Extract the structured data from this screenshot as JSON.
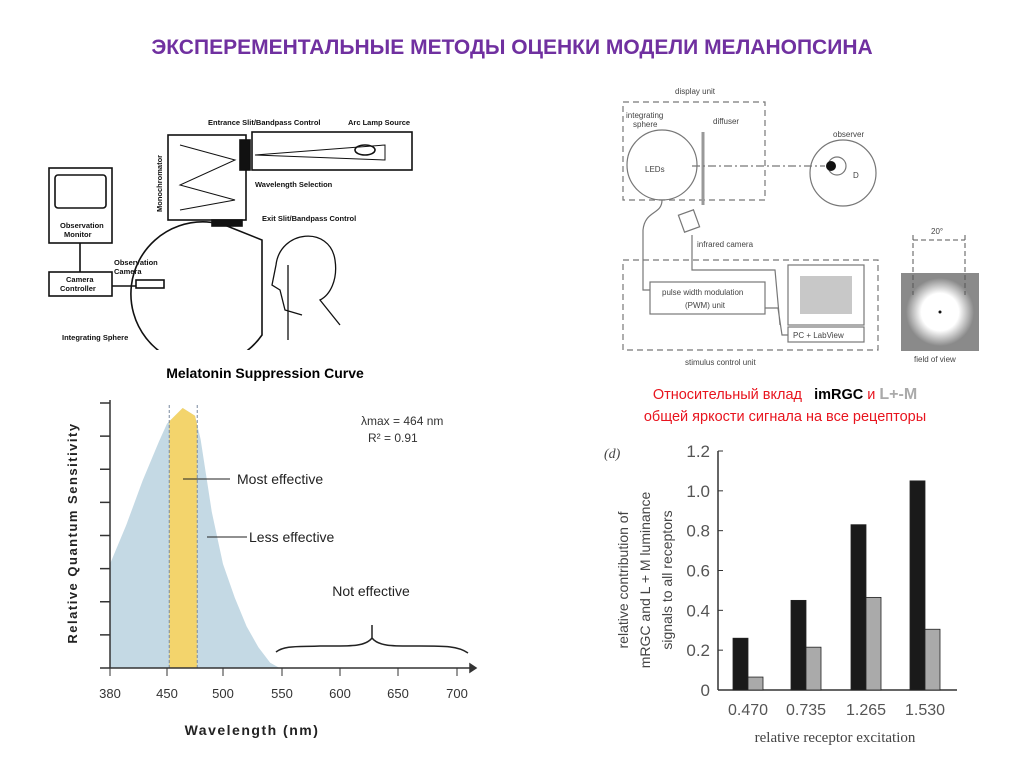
{
  "title": "ЭКСПЕРЕМЕНТАЛЬНЫЕ МЕТОДЫ ОЦЕНКИ МОДЕЛИ МЕЛАНОПСИНА",
  "left_diagram": {
    "labels": {
      "entrance": "Entrance Slit/Bandpass Control",
      "arc": "Arc Lamp Source",
      "mono": "Monochromator",
      "wavelength": "Wavelength Selection",
      "exit": "Exit Slit/Bandpass Control",
      "monitor1": "Observation",
      "monitor2": "Monitor",
      "camera1": "Observation",
      "camera2": "Camera",
      "ctrl1": "Camera",
      "ctrl2": "Controller",
      "sphere": "Integrating Sphere"
    }
  },
  "right_diagram": {
    "labels": {
      "display_unit": "display unit",
      "integrating1": "integrating",
      "integrating2": "sphere",
      "diffuser": "diffuser",
      "leds": "LEDs",
      "observer": "observer",
      "d": "D",
      "infrared": "infrared camera",
      "pwm1": "pulse width modulation",
      "pwm2": "(PWM) unit",
      "pc": "PC + LabView",
      "stimulus": "stimulus control unit",
      "angle": "20°",
      "fov": "field of view"
    }
  },
  "note": {
    "part1": "Относительный вклад",
    "imrgc": "imRGC",
    "and": "и",
    "lm": "L+-M",
    "line2": "общей яркости  сигнала на все рецепторы"
  },
  "chart_data": [
    {
      "type": "area",
      "title": "Melatonin Suppression Curve",
      "xlabel": "Wavelength (nm)",
      "ylabel": "Relative Quantum Sensitivity",
      "x_ticks": [
        380,
        450,
        500,
        550,
        600,
        650,
        700
      ],
      "ylim": [
        0,
        1
      ],
      "y_tick_count": 8,
      "series": [
        {
          "name": "sensitivity",
          "x": [
            380,
            400,
            420,
            440,
            450,
            464,
            475,
            480,
            490,
            500,
            510,
            520,
            530,
            540,
            548
          ],
          "y": [
            0.4,
            0.55,
            0.72,
            0.87,
            0.94,
            1.0,
            0.97,
            0.88,
            0.6,
            0.4,
            0.27,
            0.16,
            0.08,
            0.02,
            0
          ]
        }
      ],
      "highlight_band": [
        452,
        477
      ],
      "annotations": {
        "lambda": "λmax = 464 nm",
        "r2": "R² = 0.91",
        "most": "Most effective",
        "less": "Less effective",
        "not": "Not effective"
      },
      "colors": {
        "area": "#c4d9e4",
        "band": "#f3d46c"
      }
    },
    {
      "type": "bar",
      "panel_label": "(d)",
      "categories": [
        "0.470",
        "0.735",
        "1.265",
        "1.530"
      ],
      "series": [
        {
          "name": "mRGC",
          "values": [
            0.26,
            0.45,
            0.83,
            1.05
          ],
          "color": "#1a1a1a"
        },
        {
          "name": "L + M",
          "values": [
            0.065,
            0.215,
            0.465,
            0.305
          ],
          "color": "#aaaaaa"
        }
      ],
      "ylim": [
        0,
        1.2
      ],
      "y_ticks": [
        "0",
        "0.2",
        "0.4",
        "0.6",
        "0.8",
        "1.0",
        "1.2"
      ],
      "xlabel": "relative receptor excitation",
      "ylabel_lines": [
        "relative contribution of",
        "mRGC and L + M luminance",
        "signals to all receptors"
      ]
    }
  ]
}
